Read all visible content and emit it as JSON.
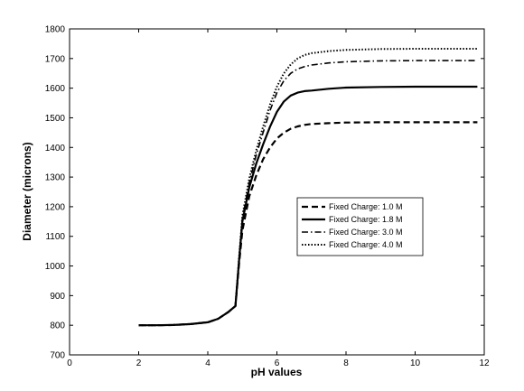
{
  "chart_data": {
    "type": "line",
    "xlabel": "pH values",
    "ylabel": "Diameter (microns)",
    "xlim": [
      0,
      12
    ],
    "ylim": [
      700,
      1800
    ],
    "x_ticks": [
      0,
      2,
      4,
      6,
      8,
      10,
      12
    ],
    "y_ticks": [
      700,
      800,
      900,
      1000,
      1100,
      1200,
      1300,
      1400,
      1500,
      1600,
      1700,
      1800
    ],
    "grid": false,
    "legend_position": "center-right",
    "series": [
      {
        "name": "Fixed Charge: 1.0 M",
        "line_style": "dashed",
        "x": [
          2,
          2.5,
          3,
          3.5,
          4,
          4.3,
          4.6,
          4.8,
          4.9,
          5.0,
          5.2,
          5.4,
          5.6,
          5.8,
          6.0,
          6.2,
          6.4,
          6.6,
          6.8,
          7.0,
          7.5,
          8,
          9,
          10,
          11,
          11.8
        ],
        "values": [
          800,
          800,
          801,
          804,
          810,
          822,
          845,
          865,
          1000,
          1120,
          1235,
          1305,
          1360,
          1400,
          1430,
          1450,
          1463,
          1471,
          1476,
          1479,
          1482,
          1484,
          1485,
          1485,
          1485,
          1485
        ]
      },
      {
        "name": "Fixed Charge: 1.8 M",
        "line_style": "solid",
        "x": [
          2,
          2.5,
          3,
          3.5,
          4,
          4.3,
          4.6,
          4.8,
          4.9,
          5.0,
          5.2,
          5.4,
          5.6,
          5.8,
          6.0,
          6.2,
          6.4,
          6.6,
          6.8,
          7.0,
          7.5,
          8,
          9,
          10,
          11,
          11.8
        ],
        "values": [
          800,
          800,
          801,
          804,
          810,
          822,
          845,
          865,
          1010,
          1150,
          1265,
          1345,
          1410,
          1470,
          1520,
          1555,
          1575,
          1585,
          1590,
          1592,
          1598,
          1602,
          1604,
          1605,
          1605,
          1605
        ]
      },
      {
        "name": "Fixed Charge: 3.0 M",
        "line_style": "dash-dot",
        "x": [
          2,
          2.5,
          3,
          3.5,
          4,
          4.3,
          4.6,
          4.8,
          4.9,
          5.0,
          5.2,
          5.4,
          5.6,
          5.8,
          6.0,
          6.2,
          6.4,
          6.6,
          6.8,
          7.0,
          7.5,
          8,
          9,
          10,
          11,
          11.8
        ],
        "values": [
          800,
          800,
          801,
          804,
          810,
          822,
          845,
          865,
          1015,
          1160,
          1280,
          1375,
          1450,
          1525,
          1585,
          1625,
          1650,
          1665,
          1673,
          1678,
          1685,
          1689,
          1692,
          1693,
          1693,
          1693
        ]
      },
      {
        "name": "Fixed Charge: 4.0 M",
        "line_style": "dotted",
        "x": [
          2,
          2.5,
          3,
          3.5,
          4,
          4.3,
          4.6,
          4.8,
          4.9,
          5.0,
          5.2,
          5.4,
          5.6,
          5.8,
          6.0,
          6.2,
          6.4,
          6.6,
          6.8,
          7.0,
          7.5,
          8,
          9,
          10,
          11,
          11.8
        ],
        "values": [
          800,
          800,
          801,
          804,
          810,
          822,
          845,
          865,
          1020,
          1170,
          1295,
          1390,
          1470,
          1545,
          1605,
          1650,
          1680,
          1700,
          1712,
          1718,
          1725,
          1729,
          1732,
          1733,
          1733,
          1733
        ]
      }
    ]
  }
}
